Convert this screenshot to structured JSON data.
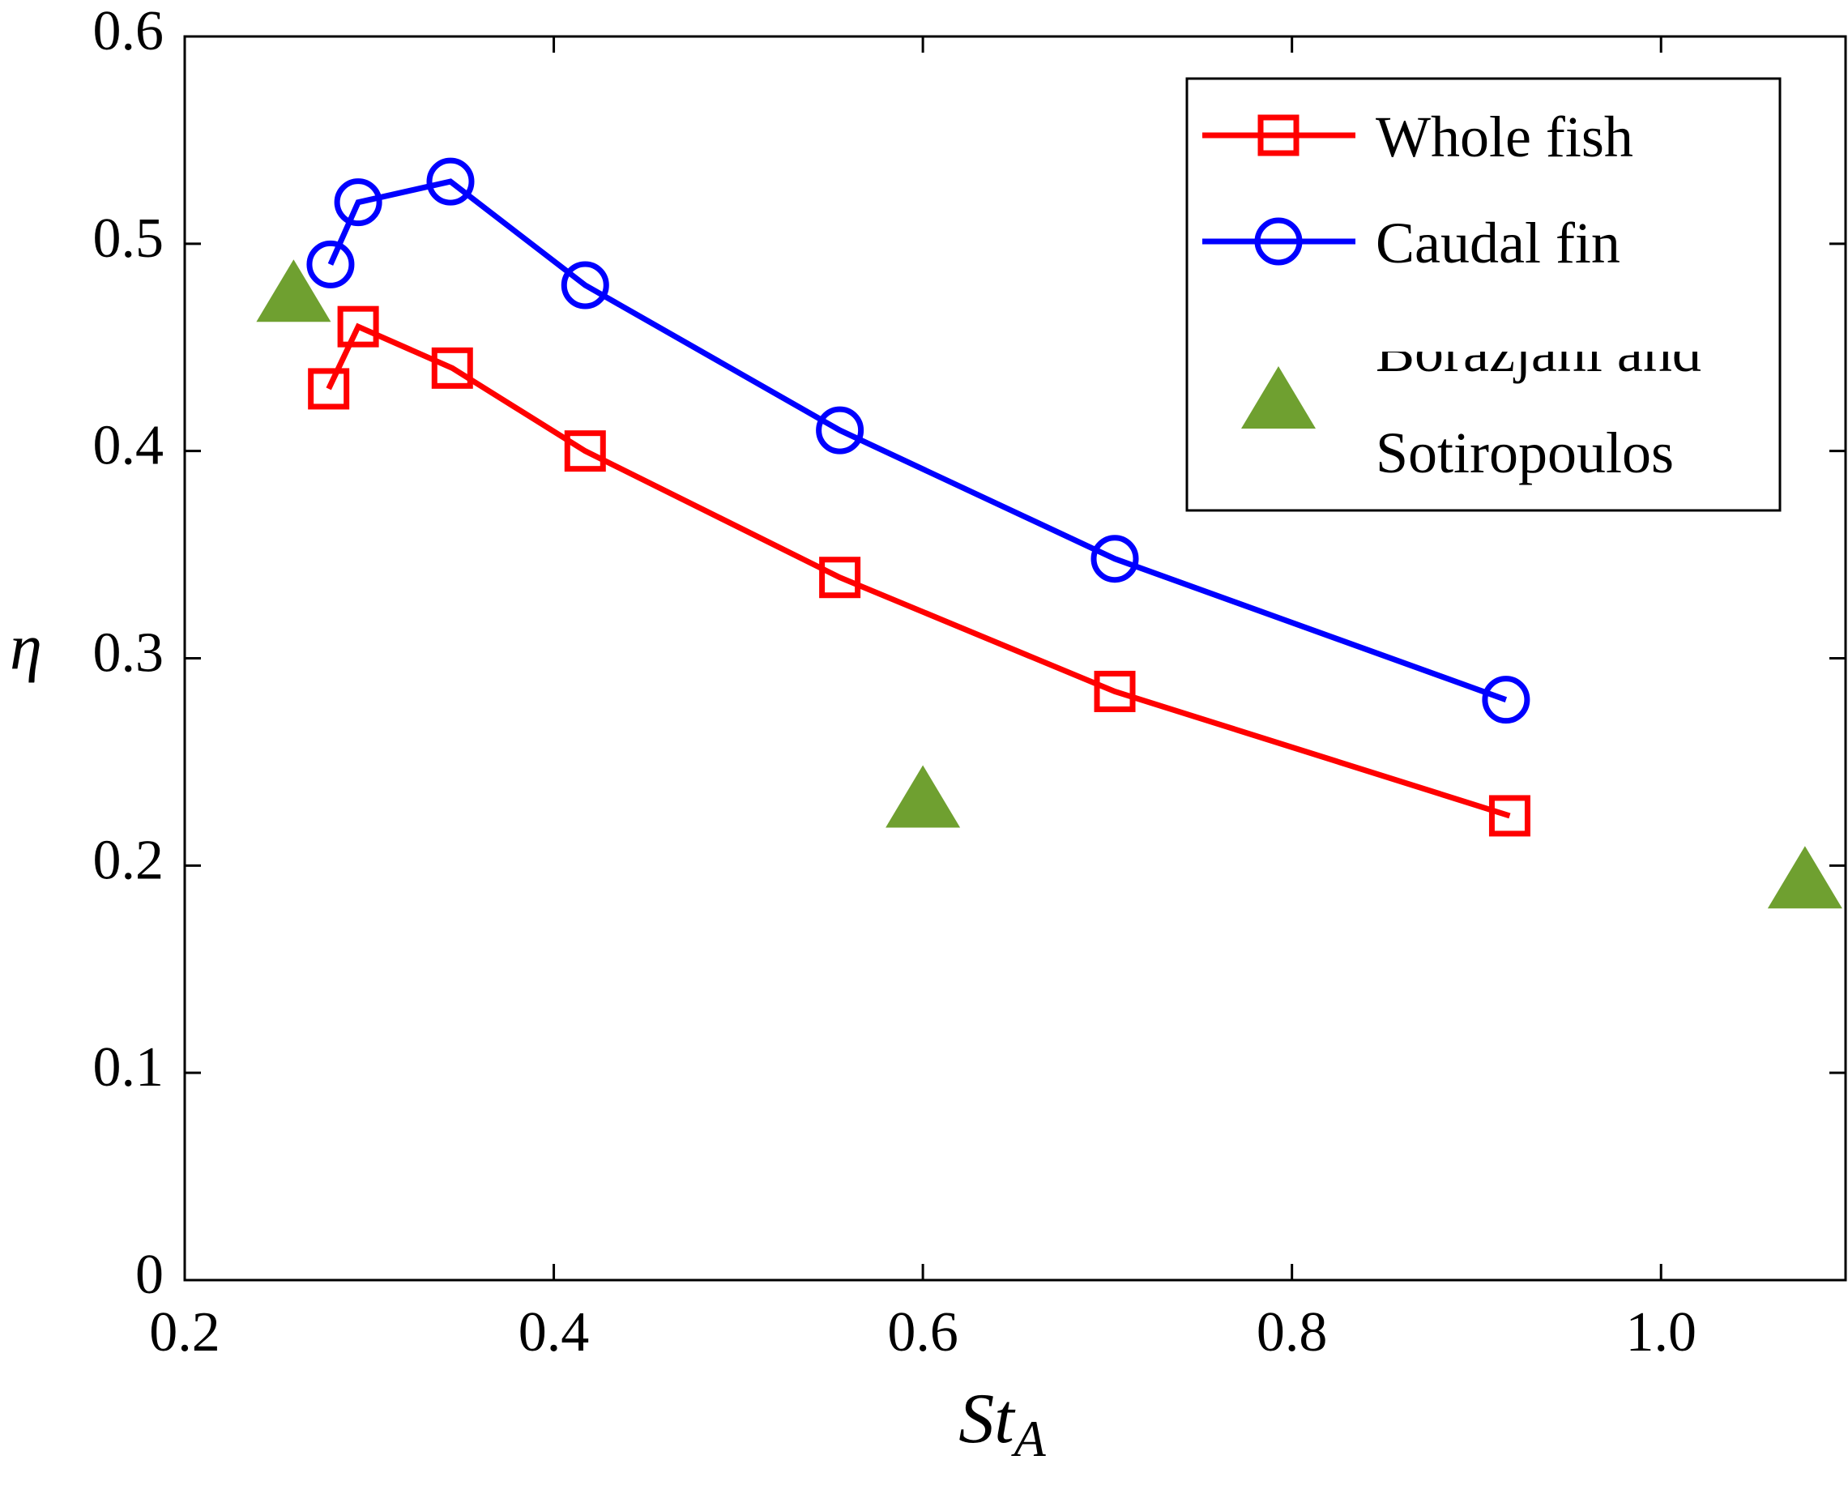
{
  "chart_data": {
    "type": "line",
    "xlabel": "St",
    "xlabel_subscript": "A",
    "ylabel": "η",
    "xlim": [
      0.2,
      1.1
    ],
    "ylim": [
      0,
      0.6
    ],
    "xticks": [
      0.2,
      0.4,
      0.6,
      0.8,
      {
        "value": 1.0,
        "label": "1.0"
      }
    ],
    "yticks": [
      0,
      0.1,
      0.2,
      0.3,
      0.4,
      0.5,
      0.6
    ],
    "legend": "upper right",
    "series": [
      {
        "name": "Whole fish",
        "color": "#ff0000",
        "marker": "square",
        "x": [
          0.278,
          0.294,
          0.345,
          0.417,
          0.555,
          0.704,
          0.918
        ],
        "values": [
          0.43,
          0.46,
          0.44,
          0.4,
          0.339,
          0.284,
          0.224
        ]
      },
      {
        "name": "Caudal fin",
        "color": "#0000ff",
        "marker": "circle",
        "x": [
          0.279,
          0.294,
          0.344,
          0.417,
          0.555,
          0.704,
          0.916
        ],
        "values": [
          0.49,
          0.52,
          0.53,
          0.48,
          0.41,
          0.348,
          0.28
        ]
      },
      {
        "name": "Borazjani and Sotiropoulos",
        "color": "#6fa030",
        "marker": "triangle",
        "x": [
          0.259,
          0.6,
          1.078
        ],
        "values": [
          0.476,
          0.232,
          0.193
        ]
      }
    ]
  }
}
